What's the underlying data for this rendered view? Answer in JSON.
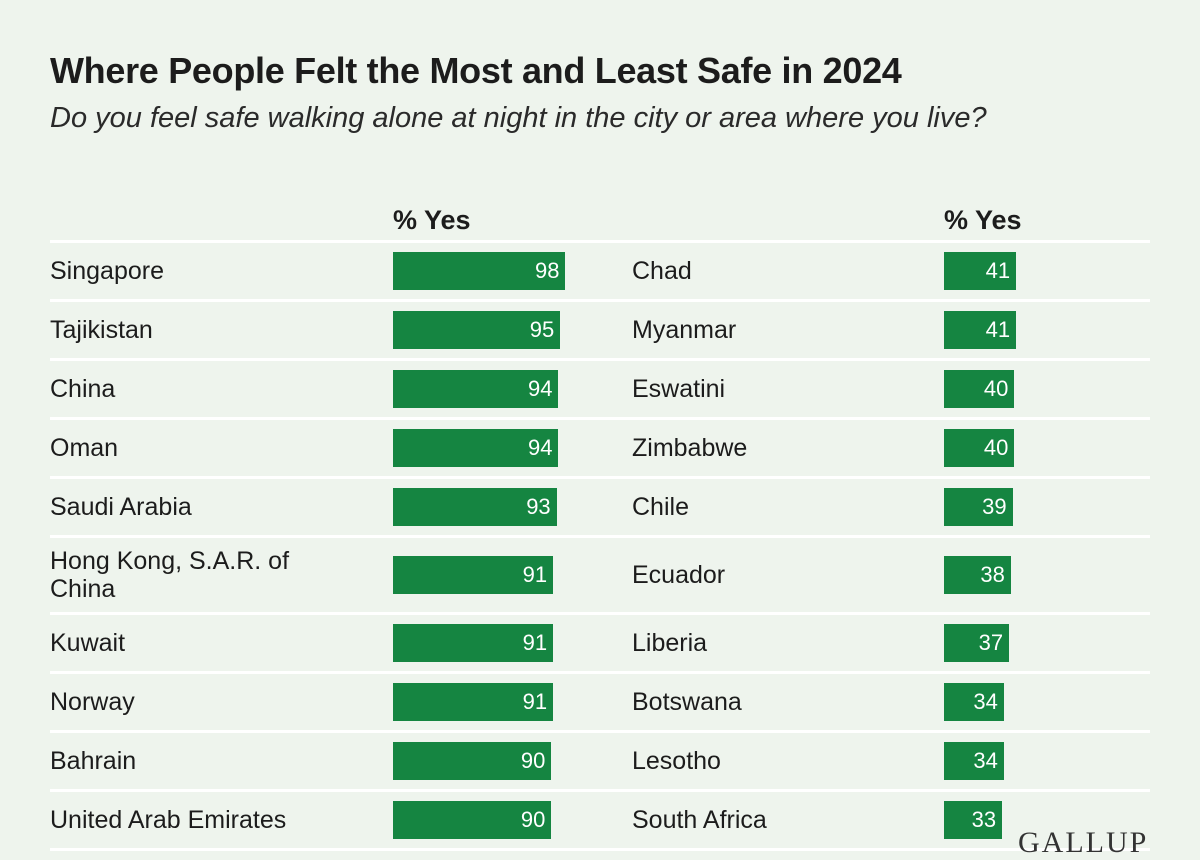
{
  "title": "Where People Felt the Most and Least Safe in 2024",
  "subtitle": "Do you feel safe walking alone at night in the city or area where you live?",
  "chart_data": [
    {
      "type": "bar",
      "header": "% Yes",
      "color": "#158541",
      "categories": [
        "Singapore",
        "Tajikistan",
        "China",
        "Oman",
        "Saudi Arabia",
        "Hong Kong, S.A.R. of China",
        "Kuwait",
        "Norway",
        "Bahrain",
        "United Arab Emirates"
      ],
      "values": [
        98,
        95,
        94,
        94,
        93,
        91,
        91,
        91,
        90,
        90
      ]
    },
    {
      "type": "bar",
      "header": "% Yes",
      "color": "#158541",
      "categories": [
        "Chad",
        "Myanmar",
        "Eswatini",
        "Zimbabwe",
        "Chile",
        "Ecuador",
        "Liberia",
        "Botswana",
        "Lesotho",
        "South Africa"
      ],
      "values": [
        41,
        41,
        40,
        40,
        39,
        38,
        37,
        34,
        34,
        33
      ]
    }
  ],
  "logo": "GALLUP"
}
